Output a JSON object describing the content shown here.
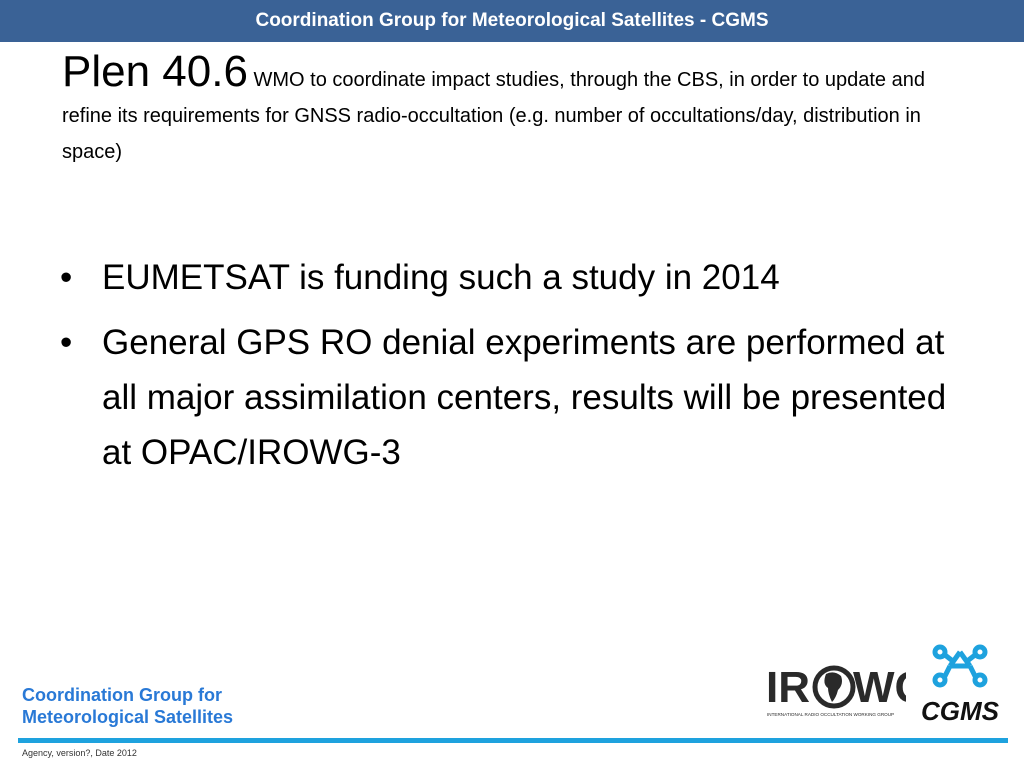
{
  "header": {
    "title": "Coordination Group for Meteorological Satellites - CGMS"
  },
  "slide": {
    "title_big": "Plen 40.6",
    "title_small": " WMO to coordinate impact studies, through the CBS, in order to update and refine its requirements for GNSS radio-occultation (e.g. number of occultations/day, distribution in space)",
    "bullets": [
      "EUMETSAT is funding such a study in 2014",
      "General GPS RO denial experiments are performed at all major assimilation centers, results will be presented at OPAC/IROWG-3"
    ],
    "bullet_symbol": "•"
  },
  "footer": {
    "org_line1": "Coordination Group for",
    "org_line2": "Meteorological Satellites",
    "version": "Agency, version?,  Date 2012"
  },
  "logos": {
    "irowg_left": "IR",
    "irowg_right": "WG",
    "irowg_sub": "INTERNATIONAL RADIO OCCULTATION WORKING GROUP",
    "cgms": "CGMS"
  },
  "colors": {
    "header_bg": "#3a6296",
    "accent_blue": "#2979d6",
    "footer_line": "#1ea2de",
    "cgms_icon": "#1ea2de"
  }
}
